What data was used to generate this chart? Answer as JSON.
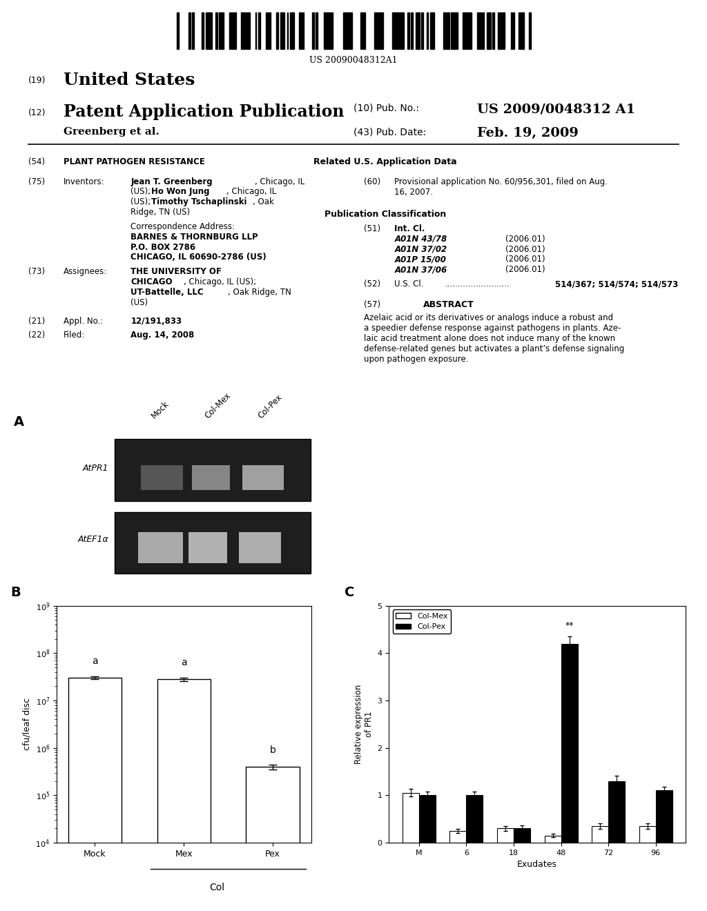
{
  "title": "PLANT PATHOGEN RESISTANCE",
  "barcode_text": "US 20090048312A1",
  "header": {
    "line1_num": "(19)",
    "line1_text": "United States",
    "line2_num": "(12)",
    "line2_text": "Patent Application Publication",
    "line2_right_num": "(10)",
    "line2_right_label": "Pub. No.:",
    "line2_right_val": "US 2009/0048312 A1",
    "line3_left": "Greenberg et al.",
    "line3_right_num": "(43)",
    "line3_right_label": "Pub. Date:",
    "line3_right_val": "Feb. 19, 2009"
  },
  "left_col": {
    "field54_num": "(54)",
    "field54_label": "PLANT PATHOGEN RESISTANCE",
    "field75_num": "(75)",
    "field75_label": "Inventors:",
    "corr_label": "Correspondence Address:",
    "corr_name": "BARNES & THORNBURG LLP",
    "corr_addr1": "P.O. BOX 2786",
    "corr_addr2": "CHICAGO, IL 60690-2786 (US)",
    "field73_num": "(73)",
    "field73_label": "Assignees:",
    "field21_num": "(21)",
    "field21_label": "Appl. No.:",
    "field21_val": "12/191,833",
    "field22_num": "(22)",
    "field22_label": "Filed:",
    "field22_val": "Aug. 14, 2008"
  },
  "right_col": {
    "related_header": "Related U.S. Application Data",
    "field60_num": "(60)",
    "field60_val": "Provisional application No. 60/956,301, filed on Aug.\n16, 2007.",
    "pub_class_header": "Publication Classification",
    "field51_num": "(51)",
    "field51_label": "Int. Cl.",
    "classifications": [
      [
        "A01N 43/78",
        "(2006.01)"
      ],
      [
        "A01N 37/02",
        "(2006.01)"
      ],
      [
        "A01P 15/00",
        "(2006.01)"
      ],
      [
        "A01N 37/06",
        "(2006.01)"
      ]
    ],
    "field52_num": "(52)",
    "field52_label": "U.S. Cl.",
    "field52_dots": ".........................",
    "field52_val": "514/367; 514/574; 514/573",
    "field57_num": "(57)",
    "field57_header": "ABSTRACT",
    "field57_val": "Azelaic acid or its derivatives or analogs induce a robust and a speedier defense response against pathogens in plants. Azelaic acid treatment alone does not induce many of the known defense-related genes but activates a plant’s defense signaling upon pathogen exposure."
  },
  "panel_A_label": "A",
  "panel_A_col_labels": [
    "Mock",
    "Col-Mex",
    "Col-Pex"
  ],
  "panel_A_row_labels": [
    "AtPR1",
    "AtEF1α"
  ],
  "panel_B_label": "B",
  "panel_B_col_label": "Col",
  "panel_B_ylabel": "cfu/leaf disc",
  "panel_B_categories": [
    "Mock",
    "Mex",
    "Pex"
  ],
  "panel_B_values": [
    30000000.0,
    28000000.0,
    400000.0
  ],
  "panel_B_errors": [
    2000000.0,
    2000000.0,
    50000.0
  ],
  "panel_B_letters": [
    "a",
    "a",
    "b"
  ],
  "panel_B_ylim_log": [
    10000.0,
    1000000000.0
  ],
  "panel_C_label": "C",
  "panel_C_xlabel": "Exudates",
  "panel_C_ylabel": "Relative expression\nof PR1",
  "panel_C_xticks": [
    "M",
    "6",
    "18",
    "48",
    "72",
    "96"
  ],
  "panel_C_ylim": [
    0,
    5
  ],
  "panel_C_yticks": [
    0,
    1,
    2,
    3,
    4,
    5
  ],
  "panel_C_col_mex": [
    1.05,
    0.25,
    0.3,
    0.15,
    0.35,
    0.35
  ],
  "panel_C_col_pex": [
    1.0,
    1.0,
    0.3,
    4.2,
    1.3,
    1.1
  ],
  "panel_C_col_mex_err": [
    0.08,
    0.04,
    0.05,
    0.04,
    0.06,
    0.06
  ],
  "panel_C_col_pex_err": [
    0.08,
    0.08,
    0.07,
    0.15,
    0.12,
    0.08
  ],
  "panel_C_legend": [
    "Col-Mex",
    "Col-Pex"
  ],
  "panel_C_star": "**",
  "bg_color": "#ffffff",
  "text_color": "#000000",
  "bar_color_white": "#ffffff",
  "bar_color_black": "#000000",
  "bar_edge_color": "#000000"
}
